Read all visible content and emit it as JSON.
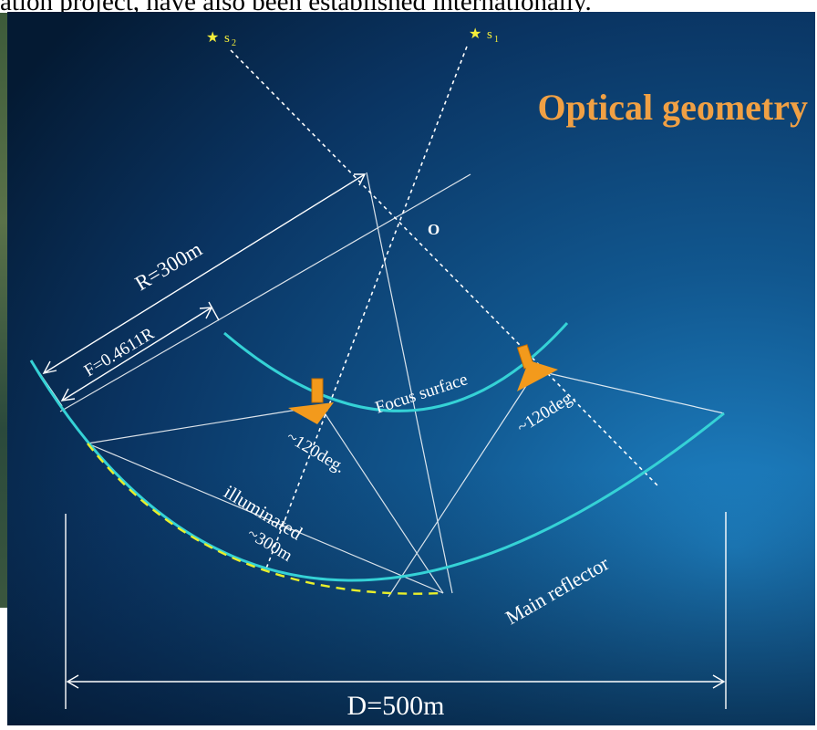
{
  "caption": "ation project, have also been established internationally.",
  "diagram": {
    "title": "Optical geometry",
    "stars": {
      "s2": "s",
      "s2_sub": "2",
      "s1": "s",
      "s1_sub": "1"
    },
    "center_label": "O",
    "radius_label": "R=300m",
    "focal_label": "F=0.4611R",
    "focus_surface_label": "Focus surface",
    "feed_angle_left": "~120deg.",
    "feed_angle_right": "~120deg.",
    "illuminated_label": "illuminated",
    "illuminated_size": "~300m",
    "reflector_label": "Main reflector",
    "diameter_label": "D=500m"
  },
  "colors": {
    "background_dark": "#041a33",
    "background_light": "#1d7fc4",
    "title": "#f0a044",
    "arc": "#35d2d6",
    "feed": "#f39a1c",
    "star": "#f4ee3a",
    "illuminated_dash": "#e9ef2a",
    "text": "#ffffff"
  }
}
